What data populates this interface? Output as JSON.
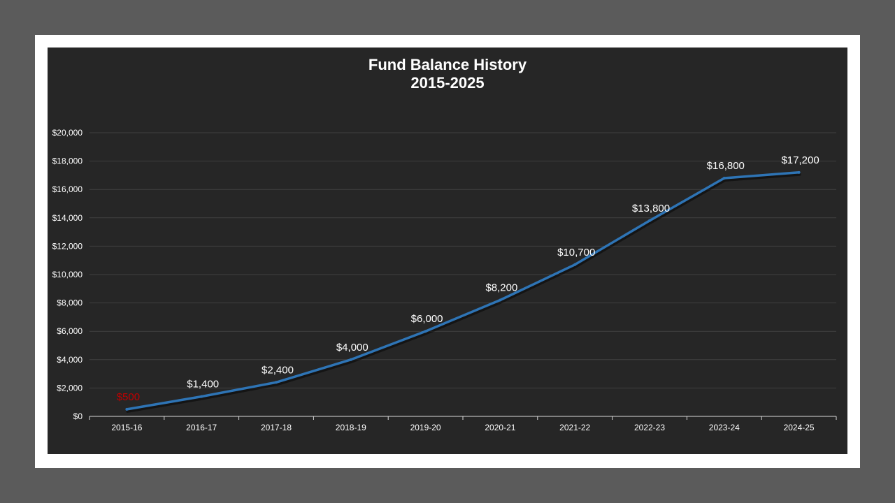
{
  "chart_data": {
    "type": "line",
    "title_line1": "Fund Balance History",
    "title_line2": "2015-2025",
    "xlabel": "",
    "ylabel": "",
    "categories": [
      "2015-16",
      "2016-17",
      "2017-18",
      "2018-19",
      "2019-20",
      "2020-21",
      "2021-22",
      "2022-23",
      "2023-24",
      "2024-25"
    ],
    "series": [
      {
        "values": [
          500,
          1400,
          2400,
          4000,
          6000,
          8200,
          10700,
          13800,
          16800,
          17200
        ],
        "data_labels": [
          "$500",
          "$1,400",
          "$2,400",
          "$4,000",
          "$6,000",
          "$8,200",
          "$10,700",
          "$13,800",
          "$16,800",
          "$17,200"
        ],
        "color": "#2e74b5"
      }
    ],
    "highlight_label_color": "#c00000",
    "ylim": [
      0,
      20000
    ],
    "yticks": [
      0,
      2000,
      4000,
      6000,
      8000,
      10000,
      12000,
      14000,
      16000,
      18000,
      20000
    ],
    "ytick_labels": [
      "$0",
      "$2,000",
      "$4,000",
      "$6,000",
      "$8,000",
      "$10,000",
      "$12,000",
      "$14,000",
      "$16,000",
      "$18,000",
      "$20,000"
    ],
    "grid": true,
    "legend": "none",
    "colors": {
      "plot_background": "#262626",
      "gridline": "#404040",
      "text": "#ffffff",
      "line": "#2e74b5"
    }
  }
}
